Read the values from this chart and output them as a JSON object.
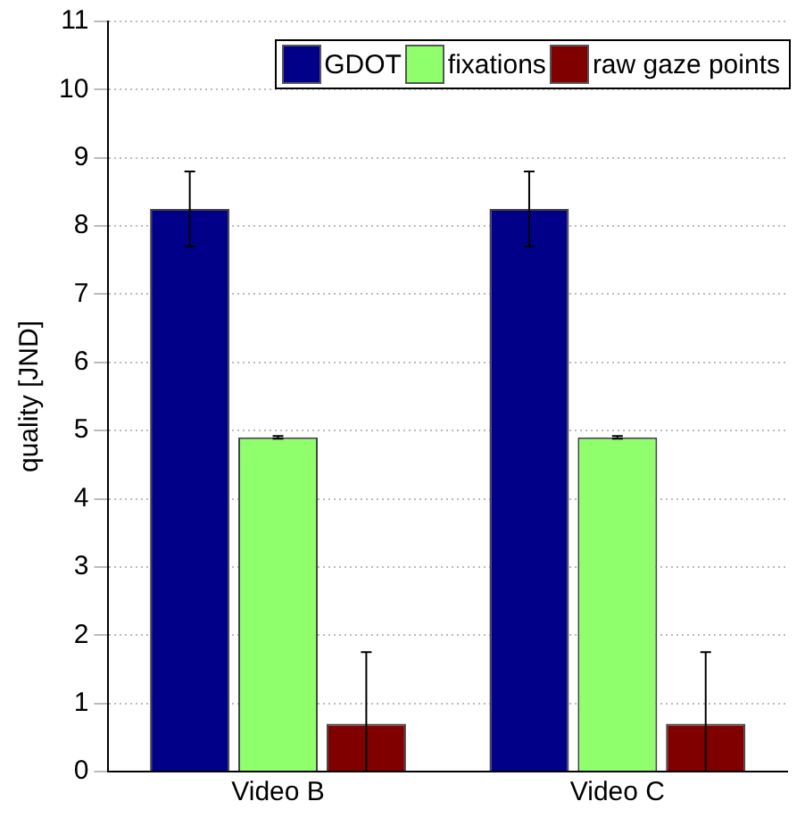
{
  "chart_data": {
    "type": "bar",
    "ylabel": "quality [JND]",
    "categories": [
      "Video B",
      "Video C"
    ],
    "series": [
      {
        "name": "GDOT",
        "color": "#000088",
        "values": [
          8.25,
          8.25
        ],
        "errors": [
          [
            7.7,
            8.8
          ],
          [
            7.7,
            8.8
          ]
        ]
      },
      {
        "name": "fixations",
        "color": "#90ff6c",
        "values": [
          4.9,
          4.9
        ],
        "errors": [
          [
            4.88,
            4.92
          ],
          [
            4.88,
            4.92
          ]
        ]
      },
      {
        "name": "raw gaze points",
        "color": "#800000",
        "values": [
          0.7,
          0.7
        ],
        "errors": [
          [
            0,
            1.75
          ],
          [
            0,
            1.75
          ]
        ]
      }
    ],
    "ylim": [
      0,
      11
    ],
    "yticks": [
      0,
      1,
      2,
      3,
      4,
      5,
      6,
      7,
      8,
      9,
      10,
      11
    ],
    "grid": "y",
    "legend": "top right"
  }
}
